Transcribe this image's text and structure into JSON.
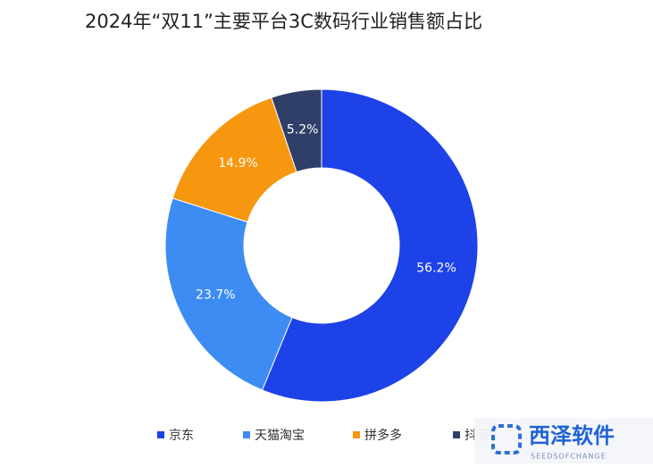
{
  "chart_data": {
    "type": "donut",
    "title": "2024年“双11”主要平台3C数码行业销售额占比",
    "categories": [
      "京东",
      "天猫淘宝",
      "拼多多",
      "抖音"
    ],
    "series": [
      {
        "values": [
          56.2,
          23.7,
          14.9,
          5.2
        ],
        "value_labels": [
          "56.2%",
          "23.7%",
          "14.9%",
          "5.2%"
        ],
        "colors": [
          "#1c42e8",
          "#3d8cf3",
          "#f7960f",
          "#2f3f68"
        ]
      }
    ],
    "legend": "bottom"
  },
  "watermark": {
    "title": "西泽软件",
    "subtitle": "SEEDSOFCHANGE"
  }
}
